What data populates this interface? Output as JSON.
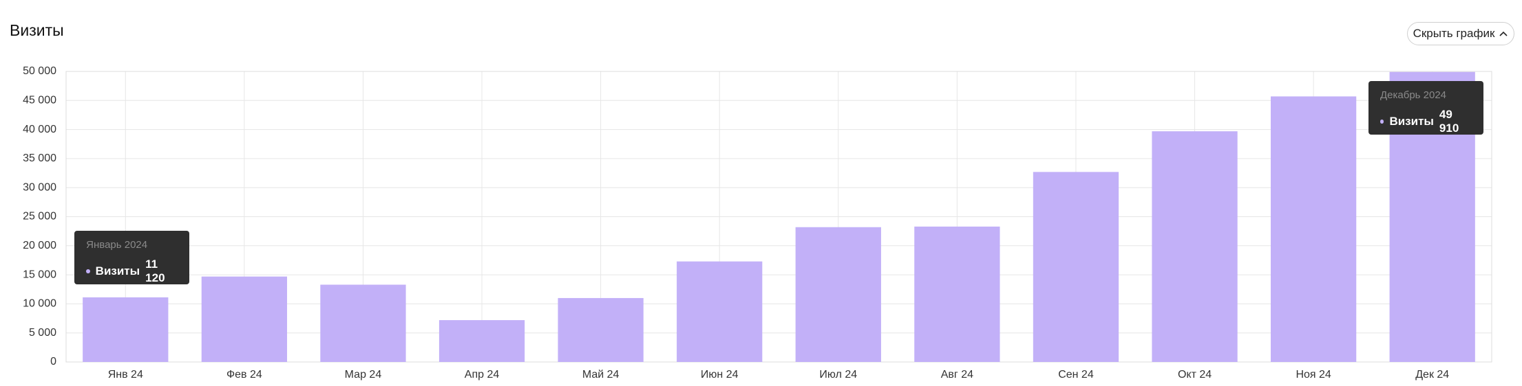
{
  "ui": {
    "toggle_button": "Скрыть график"
  },
  "chart_data": {
    "type": "bar",
    "title": "Визиты",
    "categories": [
      "Янв 24",
      "Фев 24",
      "Мар 24",
      "Апр 24",
      "Май 24",
      "Июн 24",
      "Июл 24",
      "Авг 24",
      "Сен 24",
      "Окт 24",
      "Ноя 24",
      "Дек 24"
    ],
    "series": [
      {
        "name": "Визиты",
        "color": "#c2b0f8",
        "values": [
          11120,
          14700,
          13300,
          7200,
          11000,
          17300,
          23200,
          23300,
          32700,
          39700,
          45700,
          49910
        ],
        "value_labels": [
          "11 120",
          null,
          null,
          null,
          null,
          null,
          null,
          null,
          null,
          null,
          null,
          "49 910"
        ]
      }
    ],
    "tooltip_titles": [
      "Январь 2024",
      null,
      null,
      null,
      null,
      null,
      null,
      null,
      null,
      null,
      null,
      "Декабрь 2024"
    ],
    "ylim": [
      0,
      50000
    ],
    "yticks": [
      0,
      {
        "value": 5000,
        "label": "5 000"
      },
      {
        "value": 10000,
        "label": "10 000"
      },
      {
        "value": 15000,
        "label": "15 000"
      },
      {
        "value": 20000,
        "label": "20 000"
      },
      {
        "value": 25000,
        "label": "25 000"
      },
      {
        "value": 30000,
        "label": "30 000"
      },
      {
        "value": 35000,
        "label": "35 000"
      },
      {
        "value": 40000,
        "label": "40 000"
      },
      {
        "value": 45000,
        "label": "45 000"
      },
      {
        "value": 50000,
        "label": "50 000"
      }
    ],
    "grid": true
  }
}
